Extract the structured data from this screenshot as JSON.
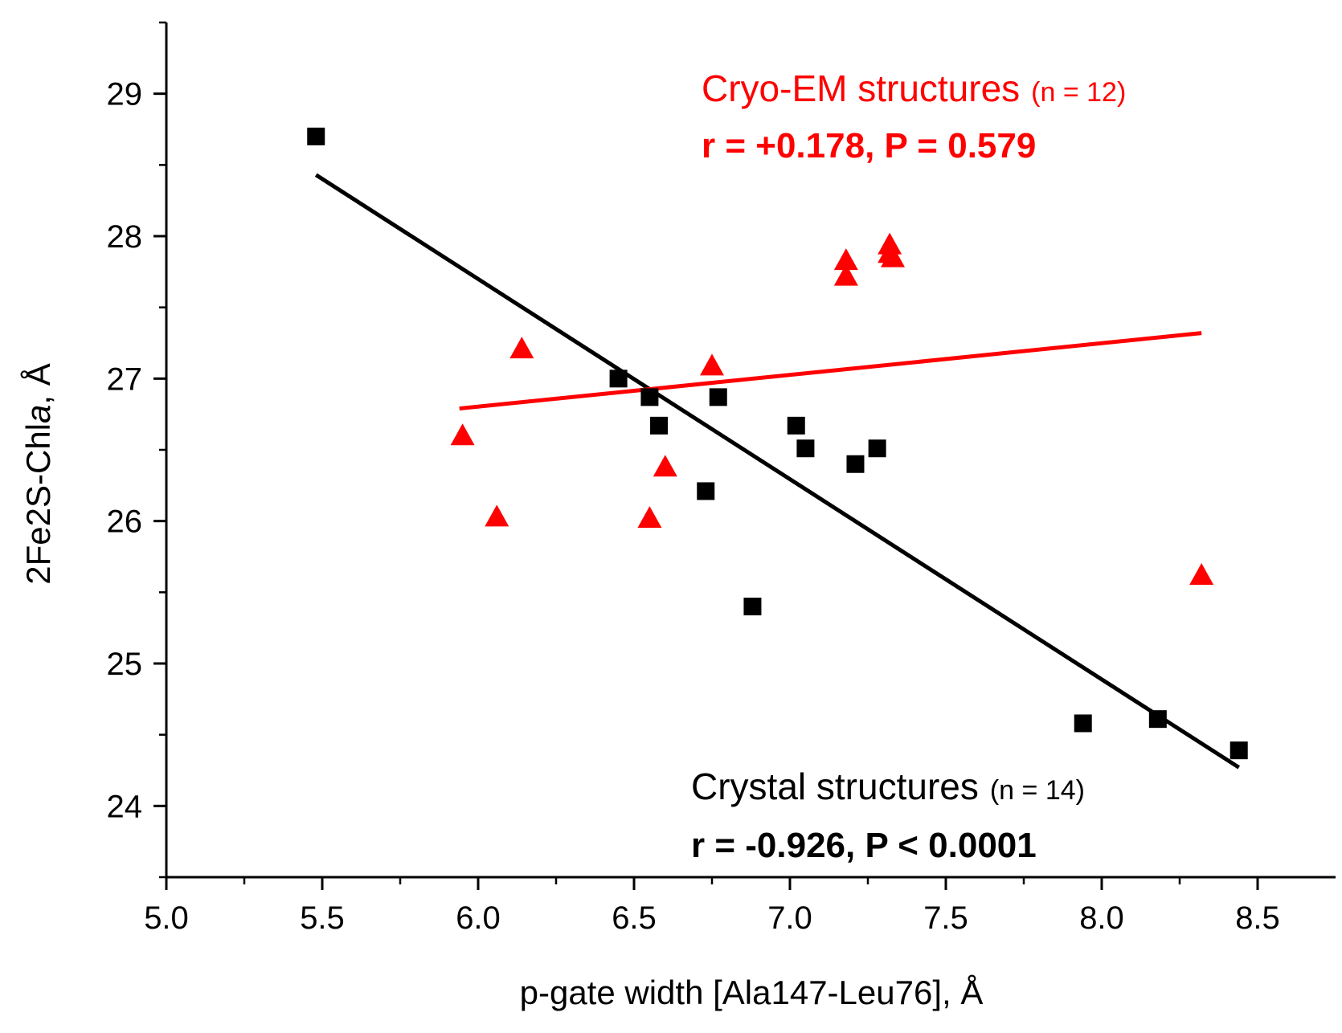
{
  "chart_data": {
    "type": "scatter",
    "title": "",
    "xlabel": "p-gate width [Ala147-Leu76], Å",
    "ylabel_prefix": "2Fe2S-Chl",
    "ylabel_italic": "a",
    "ylabel_suffix": ", Å",
    "xlim": [
      5.0,
      8.75
    ],
    "ylim": [
      23.5,
      29.5
    ],
    "xticks": [
      5.0,
      5.5,
      6.0,
      6.5,
      7.0,
      7.5,
      8.0,
      8.5
    ],
    "xtick_labels": [
      "5.0",
      "5.5",
      "6.0",
      "6.5",
      "7.0",
      "7.5",
      "8.0",
      "8.5"
    ],
    "yticks": [
      24,
      25,
      26,
      27,
      28,
      29
    ],
    "ytick_labels": [
      "24",
      "25",
      "26",
      "27",
      "28",
      "29"
    ],
    "grid": false,
    "series": [
      {
        "name": "Crystal structures",
        "marker": "square",
        "color": "#000000",
        "n_label": "(n = 14)",
        "stats": "r = -0.926, P < 0.0001",
        "points": [
          {
            "x": 5.48,
            "y": 28.7
          },
          {
            "x": 6.45,
            "y": 27.0
          },
          {
            "x": 6.55,
            "y": 26.87
          },
          {
            "x": 6.58,
            "y": 26.67
          },
          {
            "x": 6.73,
            "y": 26.21
          },
          {
            "x": 6.77,
            "y": 26.87
          },
          {
            "x": 6.88,
            "y": 25.4
          },
          {
            "x": 7.02,
            "y": 26.67
          },
          {
            "x": 7.05,
            "y": 26.51
          },
          {
            "x": 7.21,
            "y": 26.4
          },
          {
            "x": 7.28,
            "y": 26.51
          },
          {
            "x": 7.94,
            "y": 24.58
          },
          {
            "x": 8.18,
            "y": 24.61
          },
          {
            "x": 8.44,
            "y": 24.39
          }
        ],
        "fit": {
          "x1": 5.48,
          "y1": 28.43,
          "x2": 8.44,
          "y2": 24.27
        }
      },
      {
        "name": "Cryo-EM structures",
        "marker": "triangle",
        "color": "#ff0000",
        "n_label": "(n = 12)",
        "stats": "r = +0.178, P = 0.579",
        "points": [
          {
            "x": 5.95,
            "y": 26.6
          },
          {
            "x": 6.06,
            "y": 26.03
          },
          {
            "x": 6.14,
            "y": 27.21
          },
          {
            "x": 6.55,
            "y": 26.02
          },
          {
            "x": 6.6,
            "y": 26.38
          },
          {
            "x": 6.75,
            "y": 27.09
          },
          {
            "x": 7.18,
            "y": 27.83
          },
          {
            "x": 7.18,
            "y": 27.72
          },
          {
            "x": 7.32,
            "y": 27.94
          },
          {
            "x": 7.32,
            "y": 27.88
          },
          {
            "x": 7.33,
            "y": 27.85
          },
          {
            "x": 8.32,
            "y": 25.62
          }
        ],
        "fit": {
          "x1": 5.94,
          "y1": 26.79,
          "x2": 8.32,
          "y2": 27.32
        }
      }
    ]
  }
}
